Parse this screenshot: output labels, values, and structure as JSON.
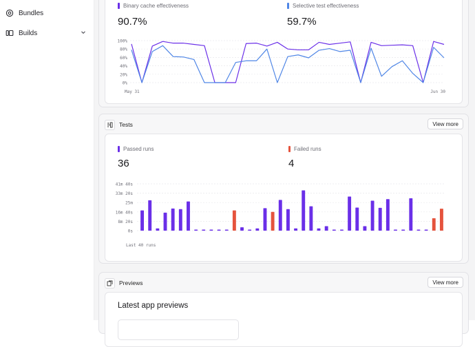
{
  "sidebar": {
    "items": [
      {
        "label": "Bundles",
        "icon": "bundles-icon"
      },
      {
        "label": "Builds",
        "icon": "builds-icon",
        "expandable": true
      }
    ]
  },
  "cache_panel": {
    "legend_binary": "Binary cache effectiveness",
    "legend_selective": "Selective test effectiveness",
    "binary_value": "90.7%",
    "selective_value": "59.7%",
    "x_start": "May 31",
    "x_end": "Jun 30"
  },
  "tests_panel": {
    "title": "Tests",
    "view_more": "View more",
    "legend_passed": "Passed runs",
    "legend_failed": "Failed runs",
    "passed_value": "36",
    "failed_value": "4",
    "x_caption": "Last 40 runs"
  },
  "previews_panel": {
    "title": "Previews",
    "view_more": "View more",
    "section_title": "Latest app previews"
  },
  "colors": {
    "primary": "#6a2fe8",
    "secondary": "#4f86e6",
    "failed": "#e5533d"
  },
  "chart_data": [
    {
      "type": "line",
      "x": [
        1,
        2,
        3,
        4,
        5,
        6,
        7,
        8,
        9,
        10,
        11,
        12,
        13,
        14,
        15,
        16,
        17,
        18,
        19,
        20,
        21,
        22,
        23,
        24,
        25,
        26,
        27,
        28,
        29,
        30,
        31
      ],
      "ylim": [
        0,
        100
      ],
      "y_ticks": [
        "0%",
        "20%",
        "40%",
        "60%",
        "80%",
        "100%"
      ],
      "x_labels": [
        "May 31",
        "Jun 30"
      ],
      "series": [
        {
          "name": "Binary cache effectiveness",
          "values": [
            92,
            0,
            87,
            98,
            94,
            94,
            91,
            88,
            0,
            0,
            0,
            93,
            94,
            87,
            96,
            80,
            78,
            78,
            96,
            91,
            94,
            97,
            0,
            96,
            88,
            89,
            90,
            88,
            0,
            98,
            91
          ]
        },
        {
          "name": "Selective test effectiveness",
          "values": [
            78,
            0,
            74,
            88,
            62,
            61,
            55,
            0,
            0,
            0,
            48,
            52,
            52,
            80,
            0,
            62,
            66,
            59,
            77,
            81,
            74,
            77,
            0,
            82,
            15,
            38,
            52,
            22,
            0,
            84,
            59
          ]
        }
      ]
    },
    {
      "type": "bar",
      "x_caption": "Last 40 runs",
      "y_ticks": [
        "0s",
        "8m 20s",
        "16m 40s",
        "25m",
        "33m 20s",
        "41m 40s"
      ],
      "ylim_seconds": [
        0,
        2500
      ],
      "series": [
        {
          "name": "Passed runs",
          "color": "#6a2fe8"
        },
        {
          "name": "Failed runs",
          "color": "#e5533d"
        }
      ],
      "values_seconds": [
        1080,
        1620,
        120,
        960,
        1180,
        1150,
        1560,
        40,
        40,
        40,
        40,
        40,
        1080,
        180,
        40,
        120,
        1200,
        1000,
        1640,
        1150,
        120,
        2150,
        1300,
        120,
        240,
        40,
        40,
        1820,
        1230,
        240,
        1600,
        1220,
        1680,
        40,
        40,
        1730,
        40,
        40,
        660,
        1170
      ],
      "failed_runs": [
        13,
        18,
        39,
        40
      ]
    }
  ]
}
